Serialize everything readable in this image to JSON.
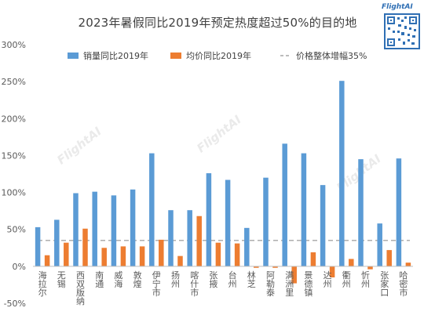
{
  "chart_data": {
    "type": "bar",
    "title": "2023年暑假同比2019年预定热度超过50%的目的地",
    "categories": [
      "海拉尔",
      "无锡",
      "西双版纳",
      "南通",
      "威海",
      "敦煌",
      "伊宁市",
      "扬州",
      "喀什市",
      "张掖",
      "台州",
      "林芝",
      "阿勒泰",
      "满洲里",
      "景德镇",
      "达州",
      "衢州",
      "忻州",
      "张家口",
      "哈密市"
    ],
    "series": [
      {
        "name": "销量同比2019年",
        "color": "#5b9bd5",
        "values": [
          53,
          63,
          99,
          101,
          96,
          104,
          153,
          76,
          76,
          126,
          117,
          52,
          120,
          166,
          153,
          110,
          251,
          145,
          58,
          146
        ]
      },
      {
        "name": "均价同比2019年",
        "color": "#ed7d31",
        "values": [
          15,
          32,
          51,
          25,
          27,
          27,
          36,
          14,
          68,
          32,
          31,
          -2,
          -2,
          -23,
          19,
          -15,
          10,
          -4,
          22,
          5
        ]
      }
    ],
    "reference_line": {
      "name": "价格整体增幅35%",
      "value": 35,
      "color": "#a6a6a6"
    },
    "ylim": [
      -50,
      300
    ],
    "yticks": [
      -50,
      0,
      50,
      100,
      150,
      200,
      250,
      300
    ],
    "ytick_labels": [
      "-50%",
      "0%",
      "50%",
      "100%",
      "150%",
      "200%",
      "250%",
      "300%"
    ],
    "xlabel": "",
    "ylabel": "",
    "legend_position": "top",
    "grid": false
  },
  "watermark": {
    "text": "FlightAI",
    "brand_text": "FlightAI"
  }
}
